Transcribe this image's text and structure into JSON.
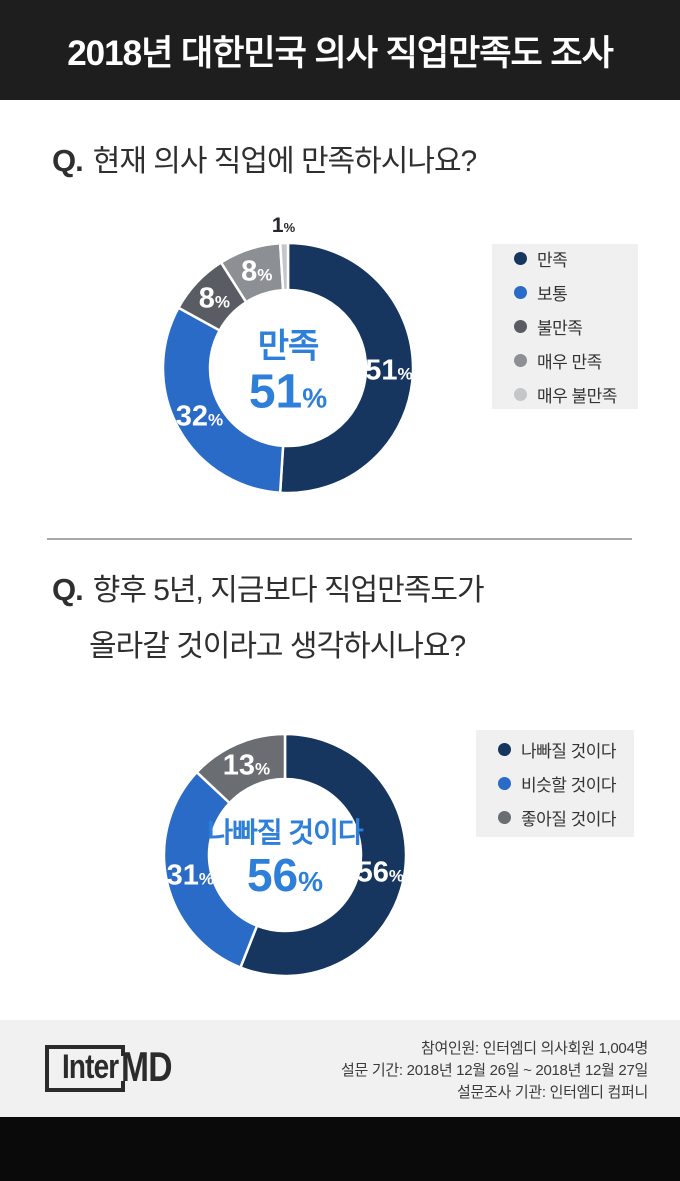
{
  "header": {
    "title": "2018년 대한민국 의사 직업만족도 조사"
  },
  "q1": {
    "prefix": "Q.",
    "line1": "현재 의사 직업에 만족하시나요?"
  },
  "q2": {
    "prefix": "Q.",
    "line1": "향후 5년, 지금보다 직업만족도가",
    "line2": "올라갈 것이라고 생각하시나요?"
  },
  "chart_data": [
    {
      "type": "pie",
      "donut": true,
      "question": "현재 의사 직업에 만족하시나요?",
      "categories": [
        "만족",
        "보통",
        "불만족",
        "매우 만족",
        "매우 불만족"
      ],
      "values": [
        51,
        32,
        8,
        8,
        1
      ],
      "colors": [
        "#16365f",
        "#2a6bc7",
        "#595d63",
        "#8c9095",
        "#c4c6c8"
      ],
      "center": {
        "label": "만족",
        "value": 51,
        "suffix": "%"
      },
      "label_suffix": "%",
      "legend_position": "right"
    },
    {
      "type": "pie",
      "donut": true,
      "question": "향후 5년, 지금보다 직업만족도가 올라갈 것이라고 생각하시나요?",
      "categories": [
        "나빠질 것이다",
        "비슷할 것이다",
        "좋아질 것이다"
      ],
      "values": [
        56,
        31,
        13
      ],
      "colors": [
        "#16365f",
        "#2a6bc7",
        "#6a6d71"
      ],
      "center": {
        "label": "나빠질 것이다",
        "value": 56,
        "suffix": "%"
      },
      "label_suffix": "%",
      "legend_position": "right"
    }
  ],
  "footer": {
    "logo_inter": "Inter",
    "logo_md": "MD",
    "lines": [
      "참여인원: 인터엠디 의사회원 1,004명",
      "설문 기간: 2018년 12월 26일 ~ 2018년 12월 27일",
      "설문조사 기관: 인터엠디 컴퍼니"
    ]
  }
}
